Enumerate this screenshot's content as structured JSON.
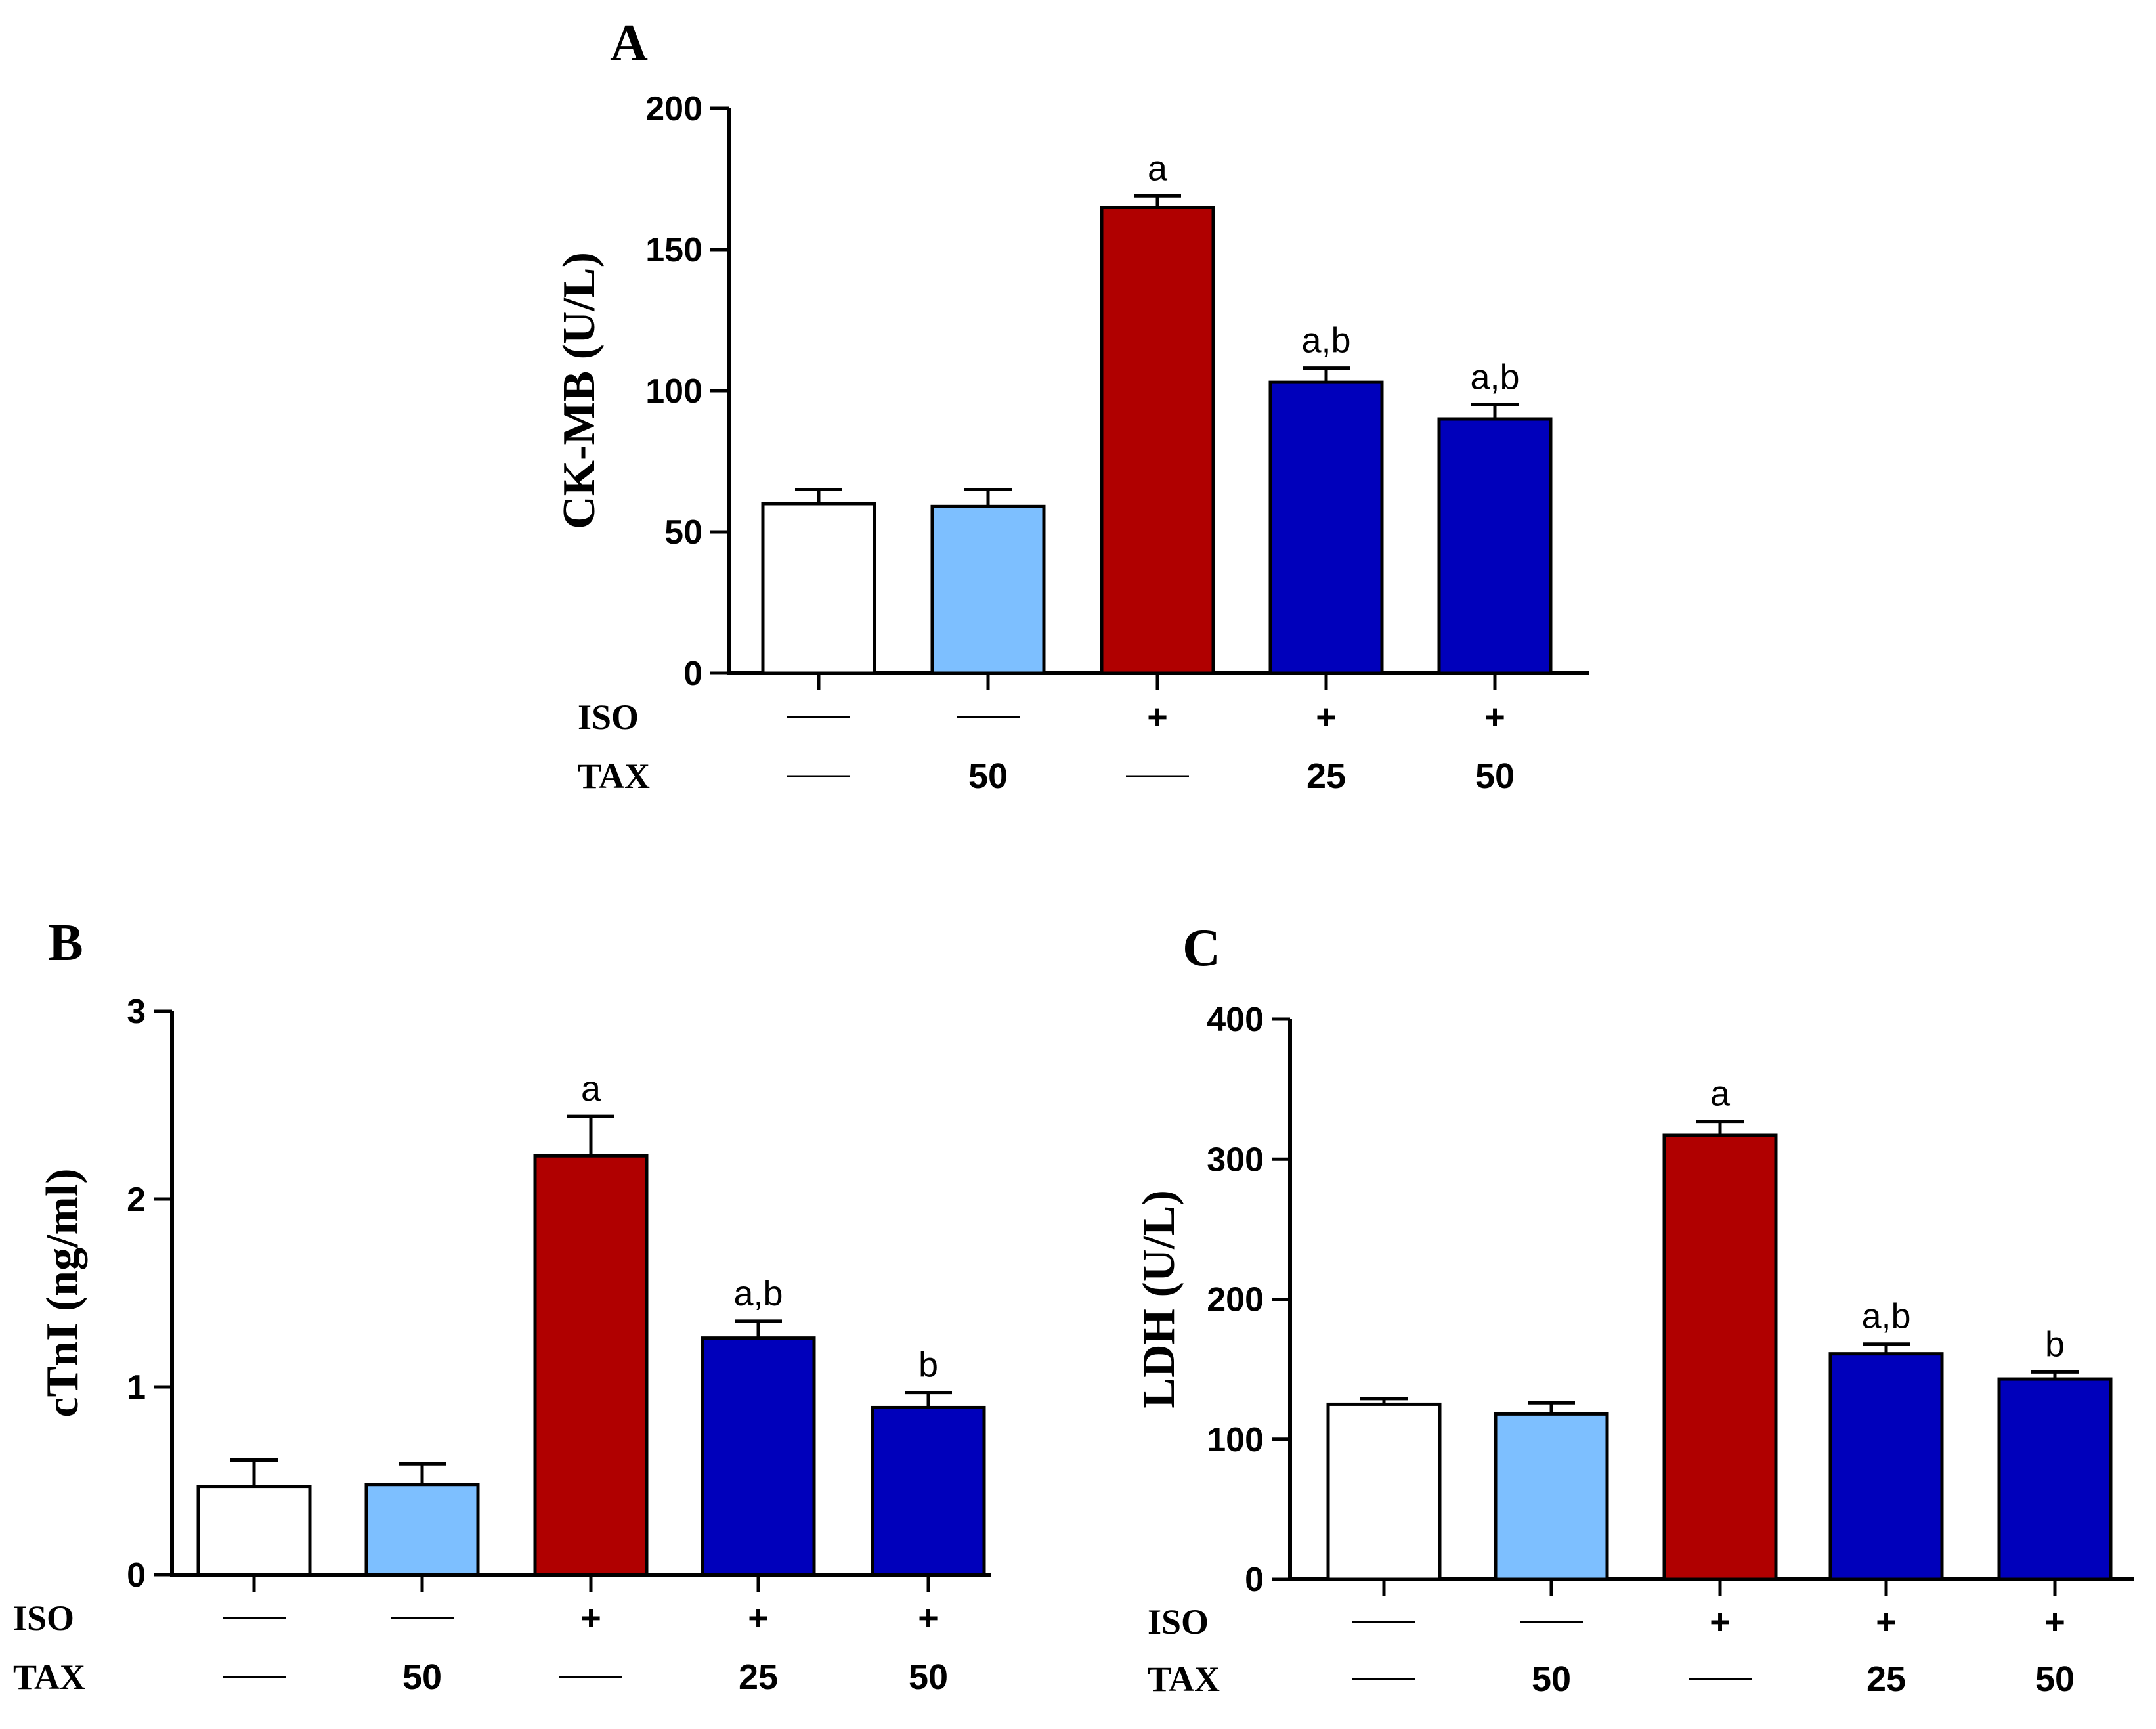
{
  "colors": {
    "control": "#ffffff",
    "tax_only": "#7dbfff",
    "iso": "#b00000",
    "iso_tax": "#0000bb",
    "axis": "#000000"
  },
  "treatments": {
    "row_labels": [
      "ISO",
      "TAX"
    ],
    "iso": [
      "—",
      "—",
      "+",
      "+",
      "+"
    ],
    "tax": [
      "—",
      "50",
      "—",
      "25",
      "50"
    ]
  },
  "chart_data": [
    {
      "panel": "A",
      "type": "bar",
      "title": "",
      "ylabel": "CK-MB (U/L)",
      "ylim": [
        0,
        200
      ],
      "yticks": [
        0,
        50,
        100,
        150,
        200
      ],
      "categories": [
        "ISO — / TAX —",
        "ISO — / TAX 50",
        "ISO + / TAX —",
        "ISO + / TAX 25",
        "ISO + / TAX 50"
      ],
      "values": [
        60,
        59,
        165,
        103,
        90
      ],
      "errors": [
        5,
        6,
        4,
        5,
        5
      ],
      "significance": [
        "",
        "",
        "a",
        "a,b",
        "a,b"
      ],
      "bar_colors": [
        "control",
        "tax_only",
        "iso",
        "iso_tax",
        "iso_tax"
      ]
    },
    {
      "panel": "B",
      "type": "bar",
      "title": "",
      "ylabel": "cTnI (ng/ml)",
      "ylim": [
        0,
        3
      ],
      "yticks": [
        0,
        1,
        2,
        3
      ],
      "categories": [
        "ISO — / TAX —",
        "ISO — / TAX 50",
        "ISO + / TAX —",
        "ISO + / TAX 25",
        "ISO + / TAX 50"
      ],
      "values": [
        0.47,
        0.48,
        2.23,
        1.26,
        0.89
      ],
      "errors": [
        0.14,
        0.11,
        0.21,
        0.09,
        0.08
      ],
      "significance": [
        "",
        "",
        "a",
        "a,b",
        "b"
      ],
      "bar_colors": [
        "control",
        "tax_only",
        "iso",
        "iso_tax",
        "iso_tax"
      ]
    },
    {
      "panel": "C",
      "type": "bar",
      "title": "",
      "ylabel": "LDH (U/L)",
      "ylim": [
        0,
        400
      ],
      "yticks": [
        0,
        100,
        200,
        300,
        400
      ],
      "categories": [
        "ISO — / TAX —",
        "ISO — / TAX 50",
        "ISO + / TAX —",
        "ISO + / TAX 25",
        "ISO + / TAX 50"
      ],
      "values": [
        125,
        118,
        317,
        161,
        143
      ],
      "errors": [
        4,
        8,
        10,
        7,
        5
      ],
      "significance": [
        "",
        "",
        "a",
        "a,b",
        "b"
      ],
      "bar_colors": [
        "control",
        "tax_only",
        "iso",
        "iso_tax",
        "iso_tax"
      ]
    }
  ]
}
